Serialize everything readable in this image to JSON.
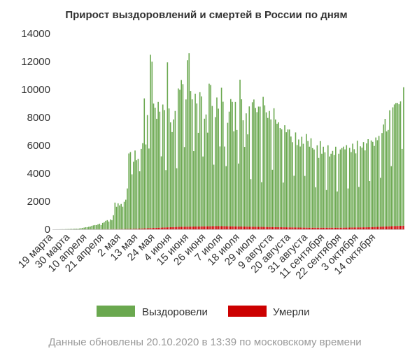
{
  "chart_data": {
    "type": "bar",
    "title": "Прирост выздоровлений и смертей в России по дням",
    "xlabel": "",
    "ylabel": "",
    "ylim": [
      0,
      14000
    ],
    "yticks": [
      0,
      2000,
      4000,
      6000,
      8000,
      10000,
      12000,
      14000
    ],
    "x_tick_labels": [
      "19 марта",
      "30 марта",
      "10 апреля",
      "21 апреля",
      "2 мая",
      "13 мая",
      "24 мая",
      "4 июня",
      "15 июня",
      "26 июня",
      "7 июля",
      "18 июля",
      "29 июля",
      "9 августа",
      "20 августа",
      "31 августа",
      "11 сентября",
      "22 сентября",
      "3 октября",
      "14 октября"
    ],
    "tick_every_days": 11,
    "start_date": "19 марта",
    "stacked": true,
    "grid": false,
    "legend_position": "bottom",
    "series": [
      {
        "name": "Выздоровели",
        "color": "#6aa84f",
        "values": [
          0,
          0,
          2,
          3,
          5,
          8,
          10,
          10,
          15,
          20,
          25,
          30,
          35,
          40,
          45,
          45,
          50,
          60,
          80,
          100,
          120,
          150,
          150,
          180,
          200,
          250,
          280,
          300,
          300,
          350,
          400,
          300,
          450,
          500,
          600,
          650,
          550,
          700,
          650,
          1000,
          1900,
          1600,
          1850,
          1700,
          1800,
          1600,
          1950,
          2100,
          2900,
          5400,
          5500,
          3900,
          4800,
          5600,
          4900,
          5000,
          4100,
          5700,
          6100,
          9300,
          6000,
          8100,
          5700,
          12400,
          11900,
          8900,
          8600,
          7800,
          9000,
          8300,
          5100,
          8800,
          8400,
          4100,
          11800,
          8500,
          7500,
          6800,
          7700,
          8300,
          4200,
          9900,
          9800,
          10500,
          10200,
          5700,
          9100,
          11900,
          12400,
          9700,
          9100,
          5400,
          9500,
          8800,
          6700,
          9600,
          9300,
          5000,
          7700,
          8000,
          6700,
          10200,
          10100,
          8600,
          4400,
          7800,
          9200,
          8400,
          5700,
          9900,
          8900,
          5700,
          4300,
          7400,
          8200,
          9100,
          8900,
          6800,
          8900,
          6900,
          4500,
          10500,
          9100,
          7600,
          5700,
          8100,
          6600,
          8600,
          3400,
          8900,
          9100,
          8500,
          8200,
          8600,
          8600,
          3200,
          9300,
          8700,
          8200,
          7800,
          8300,
          7700,
          4100,
          8500,
          7700,
          7400,
          7500,
          7100,
          7000,
          3200,
          7300,
          6800,
          7000,
          7000,
          6500,
          6100,
          3700,
          6800,
          5900,
          6300,
          5800,
          6500,
          6000,
          3700,
          6700,
          6200,
          5800,
          6400,
          5700,
          5600,
          2900,
          5900,
          5000,
          6200,
          5300,
          5800,
          5400,
          2700,
          5900,
          5100,
          5300,
          5500,
          5200,
          5800,
          2600,
          5300,
          5600,
          5700,
          5800,
          5600,
          5900,
          2800,
          5700,
          5400,
          6000,
          5600,
          5300,
          6200,
          2900,
          5800,
          5700,
          6100,
          5500,
          6000,
          6300,
          3300,
          6200,
          6100,
          5800,
          6400,
          6200,
          6500,
          3500,
          6700,
          7300,
          7700,
          6800,
          6900,
          8300,
          4300,
          8500,
          8700,
          8800,
          8800,
          8700,
          8900,
          5500,
          9900
        ]
      },
      {
        "name": "Умерли",
        "color": "#cc0000",
        "values": [
          0,
          0,
          0,
          0,
          0,
          0,
          0,
          0,
          0,
          0,
          0,
          0,
          0,
          0,
          1,
          1,
          1,
          1,
          1,
          2,
          2,
          2,
          2,
          2,
          3,
          3,
          4,
          4,
          4,
          5,
          5,
          5,
          6,
          6,
          7,
          7,
          8,
          8,
          9,
          10,
          12,
          12,
          13,
          14,
          15,
          17,
          18,
          20,
          22,
          25,
          28,
          30,
          33,
          36,
          40,
          45,
          50,
          55,
          60,
          65,
          70,
          75,
          80,
          85,
          90,
          95,
          100,
          105,
          110,
          115,
          120,
          125,
          130,
          135,
          140,
          145,
          150,
          155,
          160,
          165,
          170,
          175,
          180,
          182,
          184,
          186,
          188,
          190,
          192,
          194,
          196,
          198,
          200,
          202,
          204,
          206,
          208,
          210,
          212,
          214,
          216,
          218,
          220,
          222,
          224,
          226,
          228,
          230,
          228,
          226,
          224,
          222,
          220,
          218,
          216,
          214,
          212,
          210,
          208,
          206,
          204,
          202,
          200,
          198,
          196,
          194,
          192,
          190,
          188,
          186,
          184,
          182,
          180,
          178,
          176,
          174,
          172,
          170,
          168,
          166,
          164,
          162,
          160,
          158,
          156,
          154,
          152,
          150,
          148,
          146,
          144,
          142,
          140,
          138,
          136,
          134,
          132,
          130,
          128,
          126,
          124,
          122,
          120,
          118,
          116,
          114,
          112,
          110,
          110,
          110,
          110,
          110,
          110,
          110,
          110,
          110,
          110,
          110,
          110,
          110,
          110,
          110,
          110,
          110,
          110,
          110,
          112,
          114,
          116,
          118,
          120,
          122,
          124,
          126,
          128,
          130,
          132,
          134,
          136,
          138,
          140,
          142,
          144,
          146,
          148,
          150,
          155,
          160,
          165,
          170,
          175,
          180,
          185,
          190,
          195,
          200,
          205,
          210,
          215,
          220,
          225,
          230,
          235,
          240,
          245,
          250,
          255,
          260,
          265,
          270,
          275,
          280,
          285,
          290,
          295,
          300,
          305,
          310,
          315,
          320,
          317
        ]
      }
    ]
  },
  "legend": {
    "recovered_label": "Выздоровели",
    "deaths_label": "Умерли"
  },
  "footer_text": "Данные обновлены 20.10.2020 в 13:39 по московскому времени"
}
